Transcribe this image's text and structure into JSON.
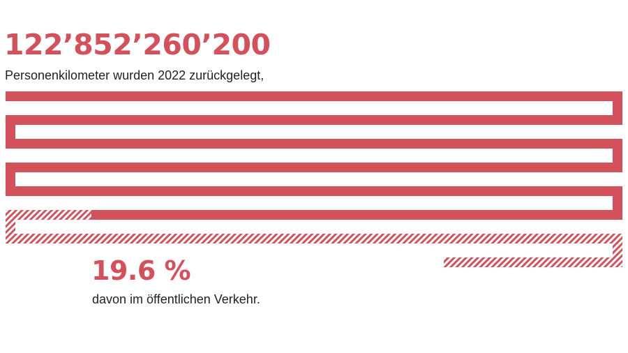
{
  "headline": {
    "total": "122’852’260’200",
    "subtitle": "Personenkilometer wurden 2022 zurückgelegt,"
  },
  "share": {
    "value": "19.6 %",
    "caption": "davon im öffentlichen Verkehr."
  },
  "colors": {
    "accent": "#d4505a",
    "text": "#222222",
    "background": "#ffffff"
  },
  "chart_data": {
    "type": "bar",
    "categories": [
      "Personenkilometer total",
      "davon öffentlicher Verkehr"
    ],
    "values": [
      122852260200,
      24079042999
    ],
    "share_percent": 19.6,
    "title": "",
    "xlabel": "",
    "ylabel": ""
  }
}
